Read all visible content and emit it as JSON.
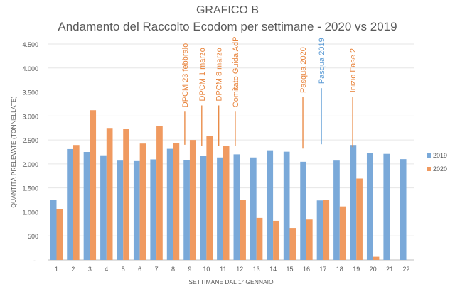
{
  "chart_data": {
    "type": "bar",
    "title": "GRAFICO B",
    "subtitle": "Andamento del Raccolto Ecodom per settimane - 2020 vs 2019",
    "xlabel": "SETTIMANE DAL 1° GENNAIO",
    "ylabel": "QUANTITÀ PRELEVATE (TONNELLATE)",
    "ylim": [
      0,
      4500
    ],
    "yticks": [
      0,
      500,
      1000,
      1500,
      2000,
      2500,
      3000,
      3500,
      4000,
      4500
    ],
    "ytick_labels": [
      "-",
      "500",
      "1.000",
      "1.500",
      "2.000",
      "2.500",
      "3.000",
      "3.500",
      "4.000",
      "4.500"
    ],
    "grid": true,
    "legend": "right",
    "categories": [
      "1",
      "2",
      "3",
      "4",
      "5",
      "6",
      "7",
      "8",
      "9",
      "10",
      "11",
      "12",
      "13",
      "14",
      "15",
      "16",
      "17",
      "18",
      "19",
      "20",
      "21",
      "22"
    ],
    "series": [
      {
        "name": "2019",
        "color": "#7aa9d9",
        "values": [
          1250,
          2310,
          2250,
          2180,
          2070,
          2060,
          2095,
          2315,
          2085,
          2165,
          2135,
          2200,
          2135,
          2285,
          2255,
          2045,
          1240,
          2070,
          2395,
          2235,
          2210,
          2100
        ]
      },
      {
        "name": "2020",
        "color": "#f09a60",
        "values": [
          1065,
          2395,
          3120,
          2750,
          2725,
          2425,
          2785,
          2440,
          2500,
          2585,
          2380,
          1250,
          875,
          815,
          665,
          840,
          1250,
          1115,
          1695,
          65,
          null,
          null
        ]
      }
    ],
    "annotations": [
      {
        "label": "DPCM 23 febbraio",
        "week": 8.7,
        "line_from": 2400,
        "line_to": 3090,
        "color": "#e8843c"
      },
      {
        "label": "DPCM 1 marzo",
        "week": 9.72,
        "line_from": 2380,
        "line_to": 3220,
        "color": "#e8843c"
      },
      {
        "label": "DPCM 8 marzo",
        "week": 10.74,
        "line_from": 2380,
        "line_to": 3220,
        "color": "#e8843c"
      },
      {
        "label": "Comitato Guida AdP",
        "week": 11.73,
        "line_from": 2370,
        "line_to": 3090,
        "color": "#e8843c"
      },
      {
        "label": "Pasqua 2020",
        "week": 15.79,
        "line_from": 2320,
        "line_to": 3390,
        "color": "#e8843c"
      },
      {
        "label": "Pasqua 2019",
        "week": 16.9,
        "line_from": 2410,
        "line_to": 3580,
        "color": "#5b9bd5"
      },
      {
        "label": "Inizio Fase 2",
        "week": 18.78,
        "line_from": 2350,
        "line_to": 3400,
        "color": "#e8843c"
      }
    ]
  }
}
